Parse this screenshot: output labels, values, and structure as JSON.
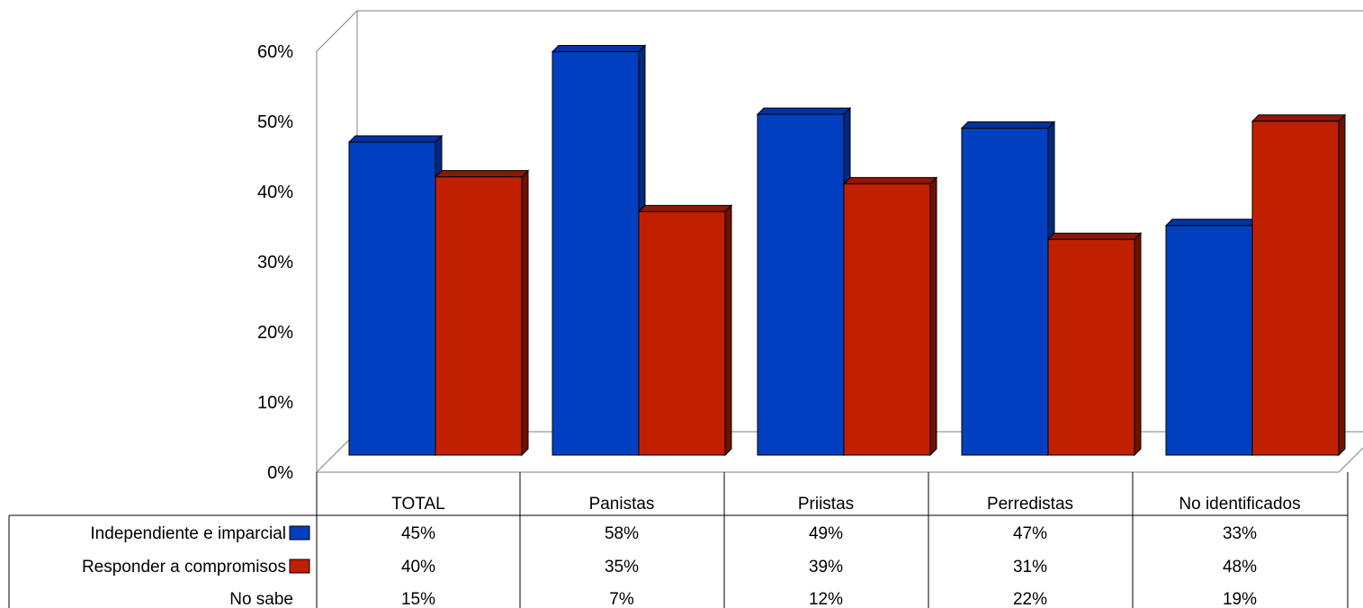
{
  "chart_data": {
    "type": "bar",
    "title": "",
    "xlabel": "",
    "ylabel": "",
    "categories": [
      "TOTAL",
      "Panistas",
      "Priistas",
      "Perredistas",
      "No identificados"
    ],
    "series": [
      {
        "name": "Independiente e imparcial",
        "values": [
          45,
          58,
          49,
          47,
          33
        ],
        "color": "#0040C0",
        "plotted": true
      },
      {
        "name": "Responder a compromisos",
        "values": [
          40,
          35,
          39,
          31,
          48
        ],
        "color": "#C02000",
        "plotted": true
      },
      {
        "name": "No sabe",
        "values": [
          15,
          7,
          12,
          22,
          19
        ],
        "plotted": false
      }
    ],
    "data_table": {
      "rows": [
        [
          "45%",
          "58%",
          "49%",
          "47%",
          "33%"
        ],
        [
          "40%",
          "35%",
          "39%",
          "31%",
          "48%"
        ],
        [
          "15%",
          "7%",
          "12%",
          "22%",
          "19%"
        ]
      ]
    },
    "yticks": [
      "0%",
      "10%",
      "20%",
      "30%",
      "40%",
      "50%",
      "60%"
    ],
    "ylim": [
      0,
      60
    ],
    "grid": false,
    "legend": "data-table",
    "style": "3d-clustered-column"
  }
}
